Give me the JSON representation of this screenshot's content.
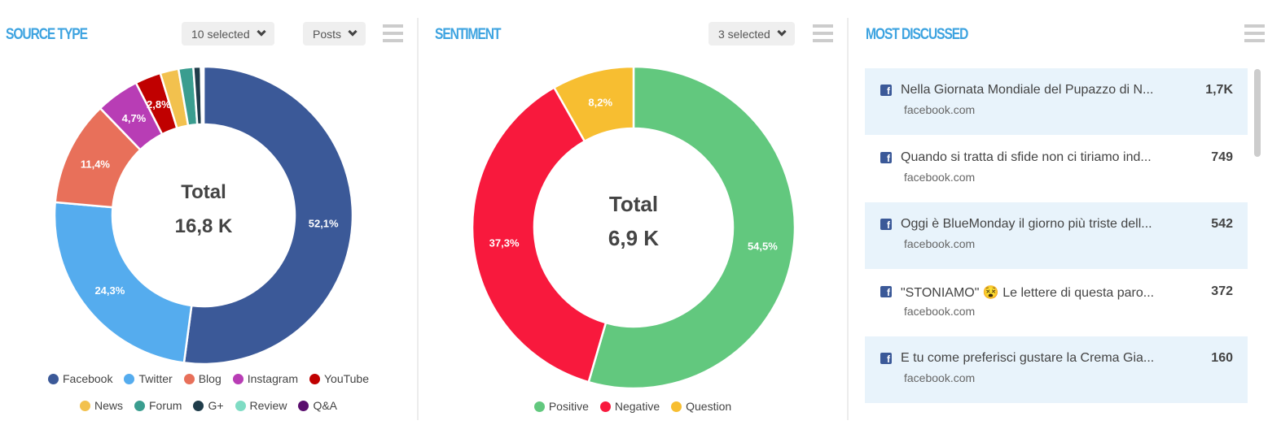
{
  "source_type": {
    "title": "SOURCE TYPE",
    "filter_label": "10 selected",
    "metric_label": "Posts",
    "center_label": "Total",
    "center_value": "16,8 K",
    "chart_data": {
      "type": "pie",
      "series": [
        {
          "name": "Facebook",
          "value": 52.1,
          "label": "52,1%",
          "color": "#3b5998"
        },
        {
          "name": "Twitter",
          "value": 24.3,
          "label": "24,3%",
          "color": "#55acee"
        },
        {
          "name": "Blog",
          "value": 11.4,
          "label": "11,4%",
          "color": "#e8705a"
        },
        {
          "name": "Instagram",
          "value": 4.7,
          "label": "4,7%",
          "color": "#b83db5"
        },
        {
          "name": "YouTube",
          "value": 2.8,
          "label": "2,8%",
          "color": "#c00000"
        },
        {
          "name": "News",
          "value": 2.0,
          "label": "",
          "color": "#f2c14e"
        },
        {
          "name": "Forum",
          "value": 1.6,
          "label": "",
          "color": "#3a9d8f"
        },
        {
          "name": "G+",
          "value": 0.8,
          "label": "",
          "color": "#1f3c4a"
        },
        {
          "name": "Review",
          "value": 0.2,
          "label": "",
          "color": "#7fdcc4"
        },
        {
          "name": "Q&A",
          "value": 0.1,
          "label": "",
          "color": "#5a0e6e"
        }
      ]
    }
  },
  "sentiment": {
    "title": "SENTIMENT",
    "filter_label": "3 selected",
    "center_label": "Total",
    "center_value": "6,9 K",
    "chart_data": {
      "type": "pie",
      "series": [
        {
          "name": "Positive",
          "value": 54.5,
          "label": "54,5%",
          "color": "#62c87e"
        },
        {
          "name": "Negative",
          "value": 37.3,
          "label": "37,3%",
          "color": "#f8193d"
        },
        {
          "name": "Question",
          "value": 8.2,
          "label": "8,2%",
          "color": "#f7be31"
        }
      ]
    }
  },
  "most_discussed": {
    "title": "MOST DISCUSSED",
    "items": [
      {
        "title": "Nella Giornata Mondiale del Pupazzo di N...",
        "source": "facebook.com",
        "count": "1,7K"
      },
      {
        "title": "Quando si tratta di sfide non ci tiriamo ind...",
        "source": "facebook.com",
        "count": "749"
      },
      {
        "title": "Oggi è BlueMonday il giorno più triste dell...",
        "source": "facebook.com",
        "count": "542"
      },
      {
        "title": "\"STONIAMO\" 😵 Le lettere di questa paro...",
        "source": "facebook.com",
        "count": "372"
      },
      {
        "title": "E tu come preferisci gustare la Crema Gia...",
        "source": "facebook.com",
        "count": "160"
      }
    ]
  }
}
